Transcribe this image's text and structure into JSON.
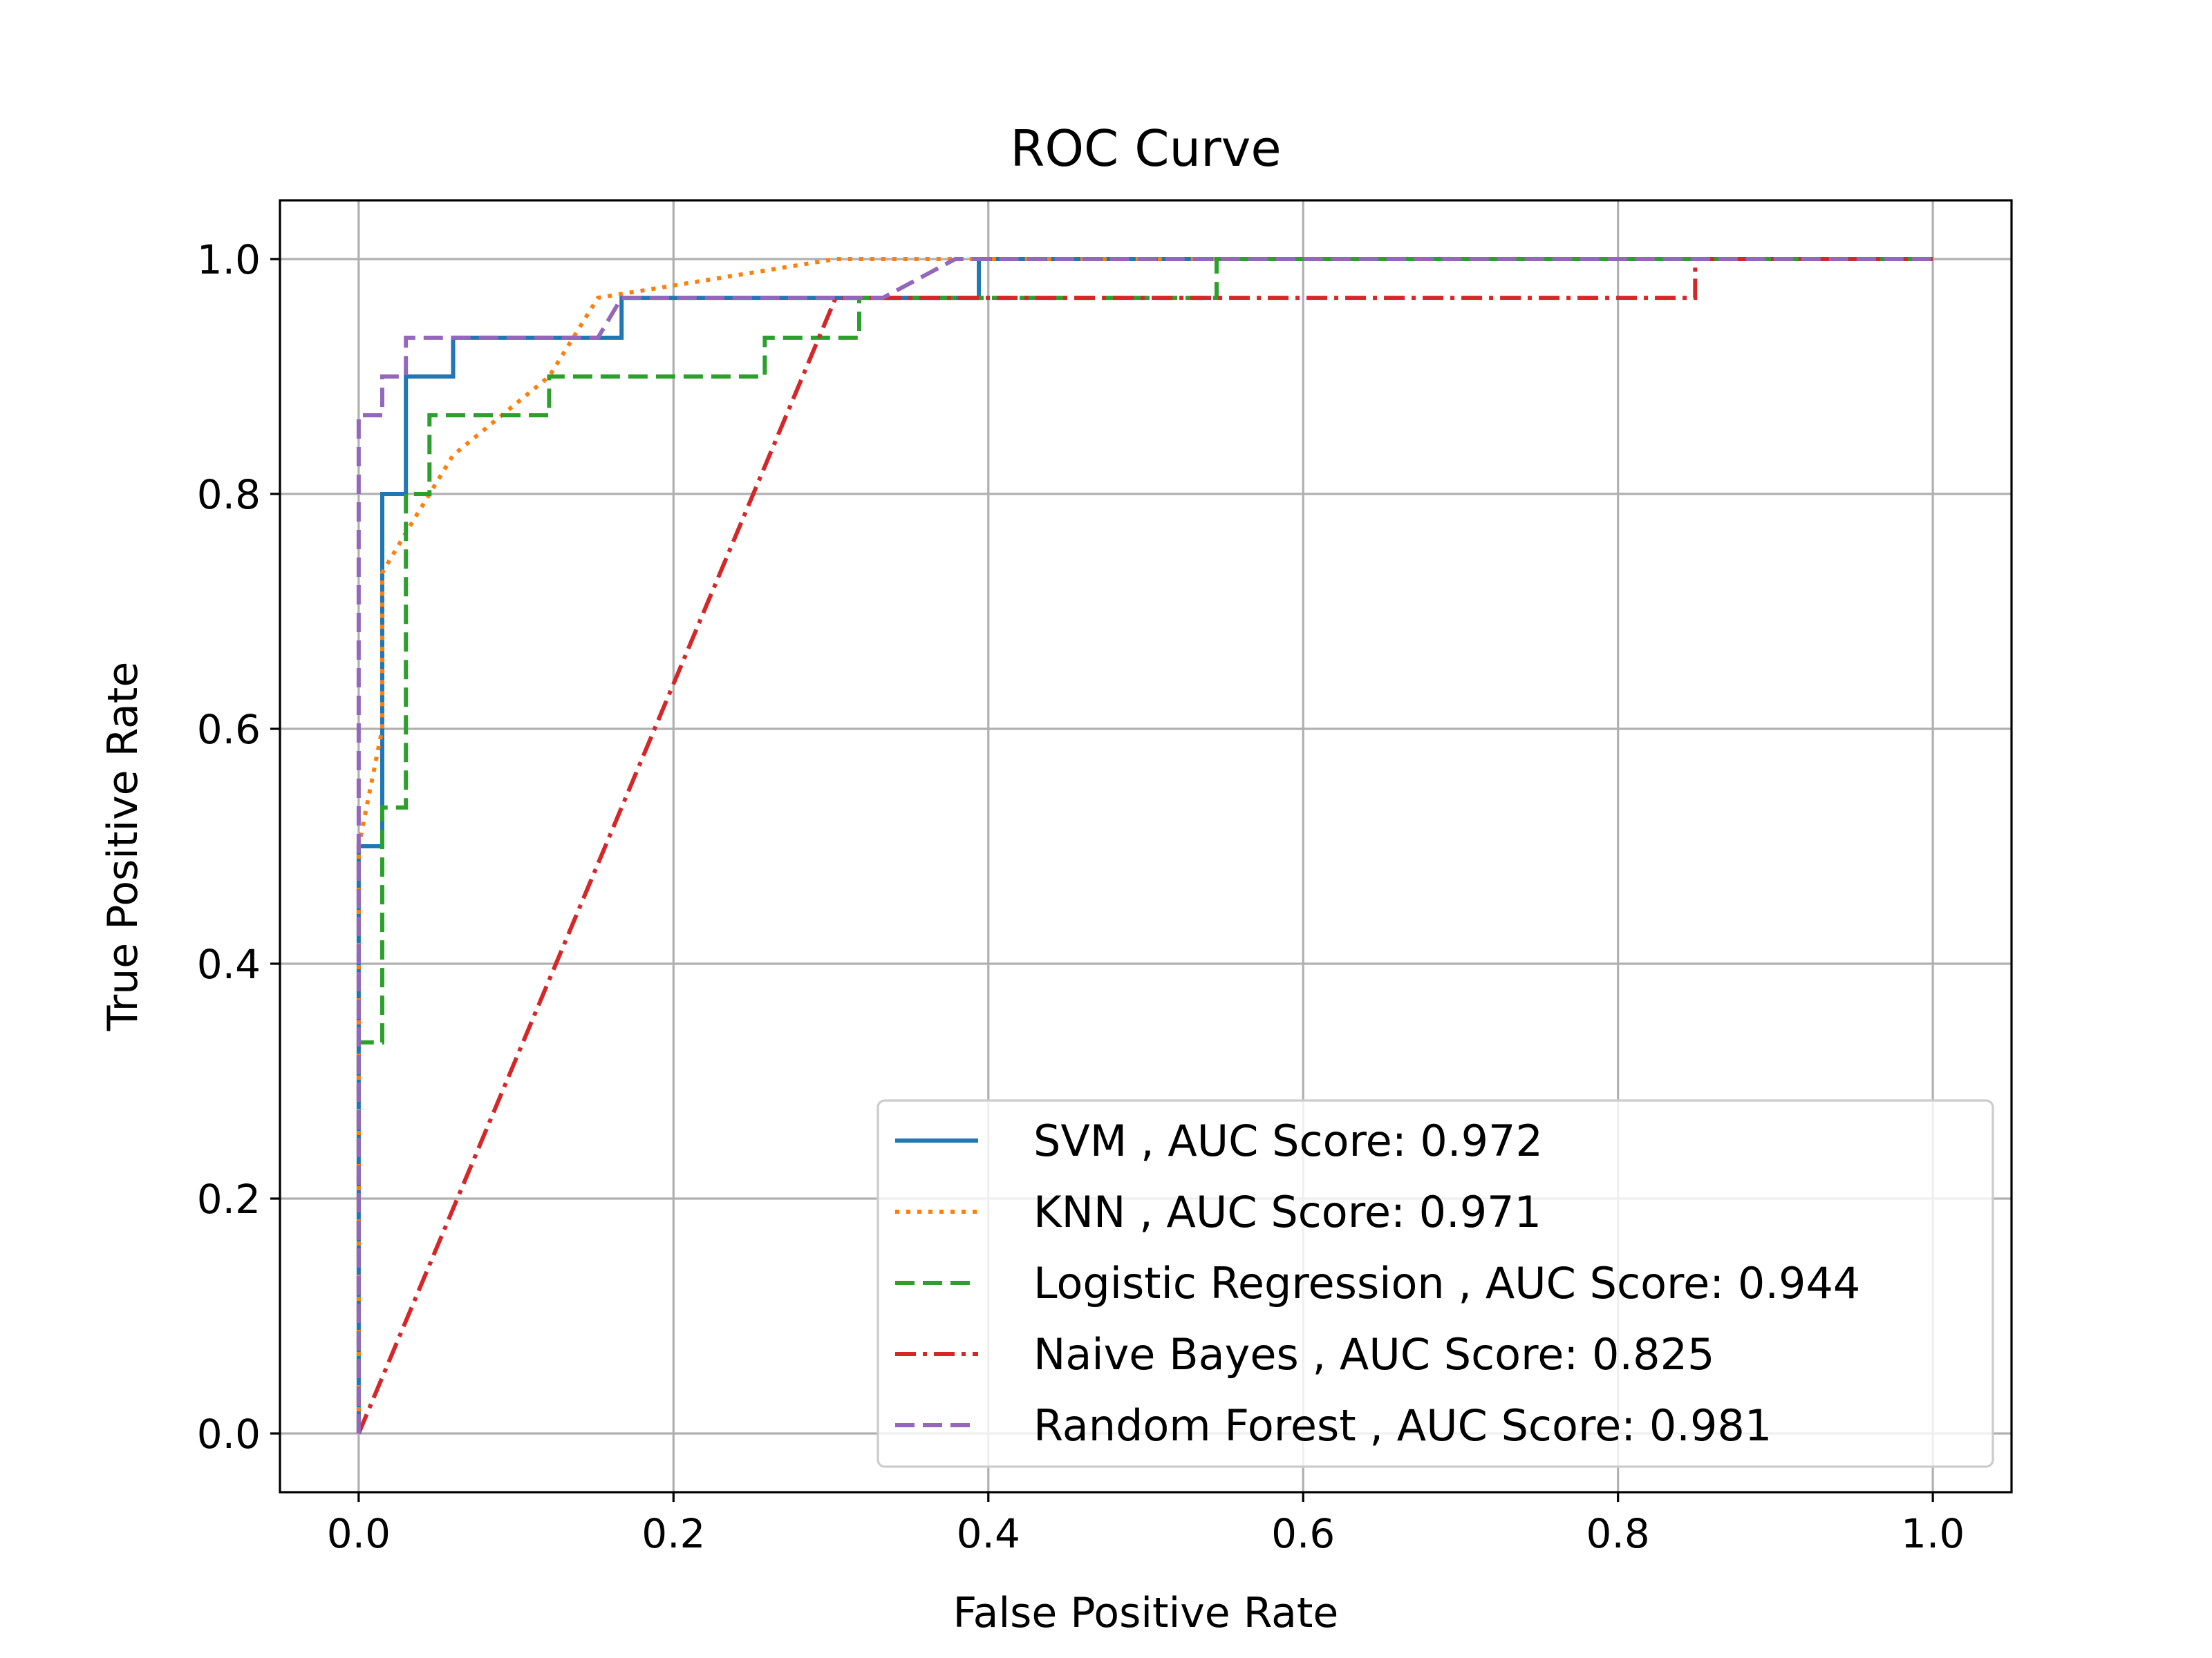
{
  "chart_data": {
    "type": "line",
    "title": "ROC Curve",
    "xlabel": "False Positive Rate",
    "ylabel": "True Positive Rate",
    "xlim": [
      -0.05,
      1.05
    ],
    "ylim": [
      -0.05,
      1.05
    ],
    "xticks": [
      0.0,
      0.2,
      0.4,
      0.6,
      0.8,
      1.0
    ],
    "xtick_labels": [
      "0.0",
      "0.2",
      "0.4",
      "0.6",
      "0.8",
      "1.0"
    ],
    "yticks": [
      0.0,
      0.2,
      0.4,
      0.6,
      0.8,
      1.0
    ],
    "ytick_labels": [
      "0.0",
      "0.2",
      "0.4",
      "0.6",
      "0.8",
      "1.0"
    ],
    "grid": true,
    "legend_position": "lower-right",
    "series": [
      {
        "name": "SVM , AUC Score: 0.972",
        "color": "#1f77b4",
        "style": "solid",
        "x": [
          0.0,
          0.0,
          0.0,
          0.015,
          0.015,
          0.03,
          0.03,
          0.06,
          0.06,
          0.167,
          0.167,
          0.394,
          0.394,
          1.0
        ],
        "y": [
          0.0,
          0.033,
          0.5,
          0.5,
          0.8,
          0.8,
          0.9,
          0.9,
          0.933,
          0.933,
          0.967,
          0.967,
          1.0,
          1.0
        ]
      },
      {
        "name": "KNN , AUC Score: 0.971",
        "color": "#ff7f0e",
        "style": "dotted",
        "x": [
          0.0,
          0.0,
          0.015,
          0.015,
          0.03,
          0.06,
          0.121,
          0.152,
          0.303,
          0.394,
          1.0
        ],
        "y": [
          0.0,
          0.5,
          0.6,
          0.733,
          0.767,
          0.833,
          0.9,
          0.967,
          1.0,
          1.0,
          1.0
        ]
      },
      {
        "name": "Logistic Regression , AUC Score: 0.944",
        "color": "#2ca02c",
        "style": "dashed",
        "x": [
          0.0,
          0.0,
          0.0,
          0.015,
          0.015,
          0.03,
          0.03,
          0.045,
          0.045,
          0.121,
          0.121,
          0.258,
          0.258,
          0.318,
          0.318,
          0.545,
          0.545,
          1.0
        ],
        "y": [
          0.0,
          0.033,
          0.333,
          0.333,
          0.533,
          0.533,
          0.8,
          0.8,
          0.867,
          0.867,
          0.9,
          0.9,
          0.933,
          0.933,
          0.967,
          0.967,
          1.0,
          1.0
        ]
      },
      {
        "name": "Naive Bayes , AUC Score: 0.825",
        "color": "#d62728",
        "style": "dashdot",
        "x": [
          0.0,
          0.303,
          0.849,
          0.849,
          1.0
        ],
        "y": [
          0.0,
          0.967,
          0.967,
          1.0,
          1.0
        ]
      },
      {
        "name": "Random Forest , AUC Score: 0.981",
        "color": "#9467bd",
        "style": "dashed",
        "x": [
          0.0,
          0.0,
          0.015,
          0.015,
          0.03,
          0.03,
          0.152,
          0.167,
          0.333,
          0.379,
          1.0
        ],
        "y": [
          0.0,
          0.867,
          0.867,
          0.9,
          0.9,
          0.933,
          0.933,
          0.967,
          0.967,
          1.0,
          1.0
        ]
      }
    ]
  }
}
